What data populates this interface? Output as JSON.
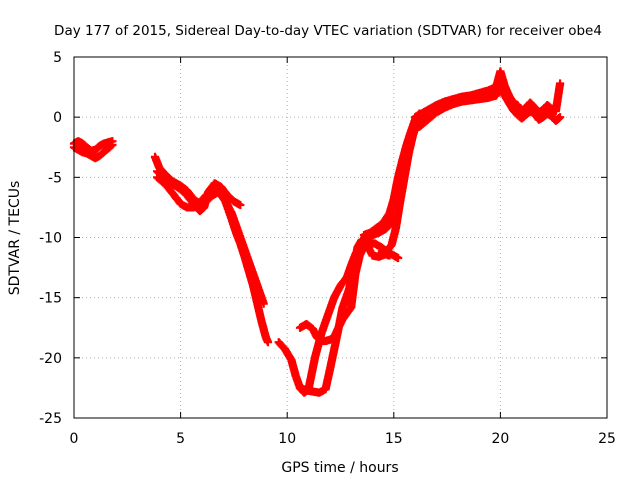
{
  "chart_data": {
    "type": "scatter",
    "title": "Day 177 of 2015, Sidereal Day-to-day VTEC variation (SDTVAR) for receiver obe4",
    "xlabel": "GPS time / hours",
    "ylabel": "SDTVAR / TECUs",
    "xlim": [
      0,
      25
    ],
    "ylim": [
      -25,
      5
    ],
    "xticks": [
      "0",
      "5",
      "10",
      "15",
      "20",
      "25"
    ],
    "yticks": [
      "-25",
      "-20",
      "-15",
      "-10",
      "-5",
      "0",
      "5"
    ],
    "grid": true,
    "marker": "plus",
    "color": "#ff0000",
    "series": [
      {
        "x": [
          0.0,
          0.2,
          0.4,
          0.6,
          0.8,
          1.0,
          1.2,
          1.4,
          1.6,
          1.8
        ],
        "y": [
          -2.5,
          -2.7,
          -2.9,
          -3.0,
          -3.2,
          -3.4,
          -3.2,
          -2.9,
          -2.6,
          -2.3
        ]
      },
      {
        "x": [
          0.0,
          0.2,
          0.4,
          0.6,
          0.8,
          1.0,
          1.2,
          1.4,
          1.6,
          1.8
        ],
        "y": [
          -2.2,
          -2.0,
          -2.2,
          -2.5,
          -2.8,
          -2.7,
          -2.4,
          -2.2,
          -2.1,
          -2.0
        ]
      },
      {
        "x": [
          3.8,
          4.0,
          4.3,
          4.6,
          5.0,
          5.3,
          5.6,
          5.9,
          6.2,
          6.5,
          6.8,
          7.1,
          7.4,
          7.6,
          7.8,
          8.0,
          8.2,
          8.4,
          8.6,
          8.8,
          9.0,
          9.1
        ],
        "y": [
          -3.3,
          -4.2,
          -4.8,
          -5.3,
          -5.7,
          -6.1,
          -6.8,
          -7.2,
          -7.0,
          -6.5,
          -6.2,
          -7.0,
          -8.5,
          -9.6,
          -10.5,
          -11.6,
          -12.8,
          -14.0,
          -15.5,
          -17.0,
          -18.3,
          -18.7
        ]
      },
      {
        "x": [
          3.9,
          4.2,
          4.6,
          5.0,
          5.3,
          5.6,
          5.9,
          6.1,
          6.3,
          6.6,
          6.9,
          7.2,
          7.5,
          7.8
        ],
        "y": [
          -4.5,
          -5.0,
          -5.5,
          -6.0,
          -6.5,
          -7.2,
          -7.8,
          -7.5,
          -6.2,
          -5.5,
          -5.8,
          -6.5,
          -7.0,
          -7.3
        ]
      },
      {
        "x": [
          3.9,
          4.3,
          4.7,
          5.0,
          5.3,
          5.6,
          5.9,
          6.2,
          6.6,
          7.0,
          7.4,
          7.8,
          8.2,
          8.5,
          8.7,
          8.9
        ],
        "y": [
          -5.0,
          -5.6,
          -6.5,
          -7.2,
          -7.5,
          -7.5,
          -7.1,
          -6.5,
          -6.0,
          -6.6,
          -8.0,
          -10.0,
          -12.0,
          -13.5,
          -14.5,
          -15.5
        ]
      },
      {
        "x": [
          9.6,
          9.9,
          10.2,
          10.4,
          10.6,
          10.8,
          11.0,
          11.3,
          11.6,
          11.9,
          12.2,
          12.5,
          12.8,
          13.0,
          13.2,
          13.4,
          13.6,
          13.8,
          14.0,
          14.3,
          14.6,
          14.9,
          15.1
        ],
        "y": [
          -18.7,
          -19.3,
          -20.2,
          -21.5,
          -22.5,
          -22.9,
          -22.6,
          -20.0,
          -18.0,
          -16.5,
          -15.0,
          -14.0,
          -13.3,
          -12.3,
          -11.4,
          -10.8,
          -10.4,
          -10.1,
          -9.8,
          -9.6,
          -9.3,
          -8.8,
          -8.0
        ]
      },
      {
        "x": [
          10.6,
          10.9,
          11.2,
          11.4,
          11.6,
          11.8,
          12.0,
          12.2,
          12.4,
          12.6,
          12.8,
          13.0,
          13.2,
          13.4,
          13.6,
          13.8,
          14.1,
          14.4,
          14.7,
          15.0,
          15.2
        ],
        "y": [
          -17.5,
          -17.2,
          -17.6,
          -18.3,
          -18.6,
          -18.6,
          -18.5,
          -18.3,
          -17.5,
          -16.8,
          -16.3,
          -15.8,
          -13.0,
          -11.5,
          -10.8,
          -10.5,
          -10.5,
          -10.8,
          -11.2,
          -11.5,
          -11.7
        ]
      },
      {
        "x": [
          10.6,
          10.9,
          11.2,
          11.5,
          11.8,
          12.0,
          12.3,
          12.6,
          12.9,
          13.1,
          13.3,
          13.5,
          13.8,
          14.0,
          14.3,
          14.6,
          14.8
        ],
        "y": [
          -22.5,
          -22.7,
          -22.8,
          -22.9,
          -22.6,
          -21.0,
          -18.5,
          -15.8,
          -14.3,
          -12.8,
          -10.8,
          -10.2,
          -10.8,
          -11.5,
          -11.6,
          -11.4,
          -11.5
        ]
      },
      {
        "x": [
          13.6,
          13.9,
          14.2,
          14.5,
          14.8,
          15.0,
          15.2,
          15.4,
          15.6,
          15.8,
          16.0,
          16.2,
          16.4,
          16.6
        ],
        "y": [
          -9.8,
          -9.6,
          -9.2,
          -8.8,
          -8.0,
          -6.8,
          -5.0,
          -3.6,
          -2.3,
          -1.2,
          -0.2,
          0.3,
          0.2,
          0.5
        ]
      },
      {
        "x": [
          14.3,
          14.6,
          14.9,
          15.1,
          15.3,
          15.5,
          15.7,
          15.9,
          16.1,
          16.3
        ],
        "y": [
          -11.4,
          -11.3,
          -10.6,
          -9.2,
          -7.0,
          -5.0,
          -3.0,
          -1.5,
          -0.4,
          0.2
        ]
      },
      {
        "x": [
          16.0,
          16.3,
          16.6,
          17.0,
          17.4,
          17.8,
          18.2,
          18.6,
          19.0,
          19.4,
          19.8,
          20.0,
          20.2,
          20.4,
          20.6,
          20.8,
          21.0,
          21.2,
          21.4,
          21.6,
          21.8,
          22.0,
          22.2,
          22.4,
          22.6,
          22.8
        ],
        "y": [
          0.0,
          0.3,
          0.6,
          1.0,
          1.3,
          1.5,
          1.7,
          1.8,
          2.0,
          2.2,
          2.5,
          3.8,
          2.6,
          1.8,
          1.2,
          1.0,
          0.5,
          0.8,
          1.2,
          0.8,
          0.4,
          0.6,
          1.0,
          0.7,
          0.5,
          2.8
        ]
      },
      {
        "x": [
          16.2,
          16.6,
          17.0,
          17.4,
          17.8,
          18.2,
          18.6,
          19.0,
          19.4,
          19.8,
          20.0,
          20.2,
          20.4,
          20.6,
          20.8,
          21.0,
          21.2,
          21.4,
          21.6,
          21.8,
          22.0,
          22.2,
          22.4,
          22.6,
          22.8
        ],
        "y": [
          -0.8,
          -0.2,
          0.4,
          0.8,
          1.1,
          1.3,
          1.4,
          1.5,
          1.6,
          1.8,
          2.4,
          1.8,
          1.2,
          0.6,
          0.2,
          -0.1,
          0.2,
          0.5,
          0.3,
          -0.2,
          0.0,
          0.3,
          0.1,
          -0.3,
          0.0
        ]
      }
    ]
  }
}
